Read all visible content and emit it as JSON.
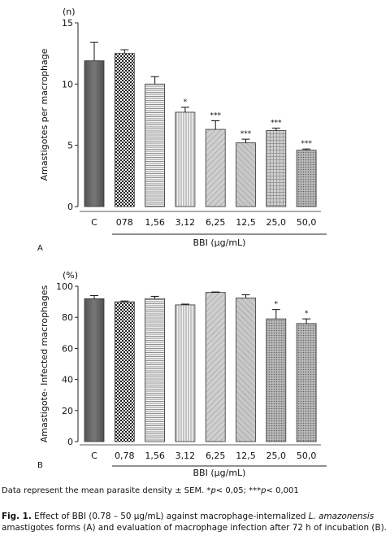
{
  "chart_data": [
    {
      "type": "bar",
      "panel": "A",
      "unit_label": "(n)",
      "ylabel": "Amastigotes per macrophage",
      "xlabel": "BBI (µg/mL)",
      "categories": [
        "C",
        "078",
        "1,56",
        "3,12",
        "6,25",
        "12,5",
        "25,0",
        "50,0"
      ],
      "values": [
        11.9,
        12.5,
        10.0,
        7.7,
        6.3,
        5.2,
        6.2,
        4.6
      ],
      "errors": [
        1.5,
        0.3,
        0.6,
        0.4,
        0.7,
        0.3,
        0.2,
        0.1
      ],
      "significance": [
        "",
        "",
        "",
        "*",
        "***",
        "***",
        "***",
        "***"
      ],
      "ylim": [
        0,
        15
      ],
      "yticks": [
        "0",
        "5",
        "10",
        "15"
      ],
      "ytick_values": [
        0,
        5,
        10,
        15
      ],
      "bar_patterns": [
        "dark",
        "checker",
        "hlines-dense",
        "vlines",
        "diag-right",
        "diag-left",
        "grid",
        "dots"
      ]
    },
    {
      "type": "bar",
      "panel": "B",
      "unit_label": "(%)",
      "ylabel": "Amastigote- Infected macrophages",
      "xlabel": "BBI (µg/mL)",
      "categories": [
        "C",
        "0,78",
        "1,56",
        "3,12",
        "6,25",
        "12,5",
        "25,0",
        "50,0"
      ],
      "values": [
        92,
        90,
        92,
        88,
        96,
        92.5,
        79,
        76
      ],
      "errors": [
        2,
        0.5,
        1.5,
        0.5,
        0.3,
        2,
        6,
        3
      ],
      "significance": [
        "",
        "",
        "",
        "",
        "",
        "",
        "*",
        "*"
      ],
      "ylim": [
        0,
        100
      ],
      "yticks": [
        "0",
        "20",
        "40",
        "60",
        "80",
        "100"
      ],
      "ytick_values": [
        0,
        20,
        40,
        60,
        80,
        100
      ],
      "bar_patterns": [
        "dark",
        "checker",
        "hlines-dense",
        "vlines",
        "diag-right",
        "diag-left",
        "dots",
        "dots"
      ]
    }
  ],
  "panel_letters": [
    "A",
    "B"
  ],
  "note": {
    "text_before": "Data represent the mean parasite density ± SEM. *",
    "p1": "p",
    "text_mid": "< 0,05; ***",
    "p2": "p",
    "text_after": "< 0,001"
  },
  "caption": {
    "label": "Fig. 1.",
    "text1": " Effect of BBI (0.78 – 50 µg/mL) against macrophage-internalized ",
    "species": "L. amazonensis",
    "text2": " amastigotes forms (A) and evaluation of macrophage infection after 72 h of incubation (B)."
  }
}
